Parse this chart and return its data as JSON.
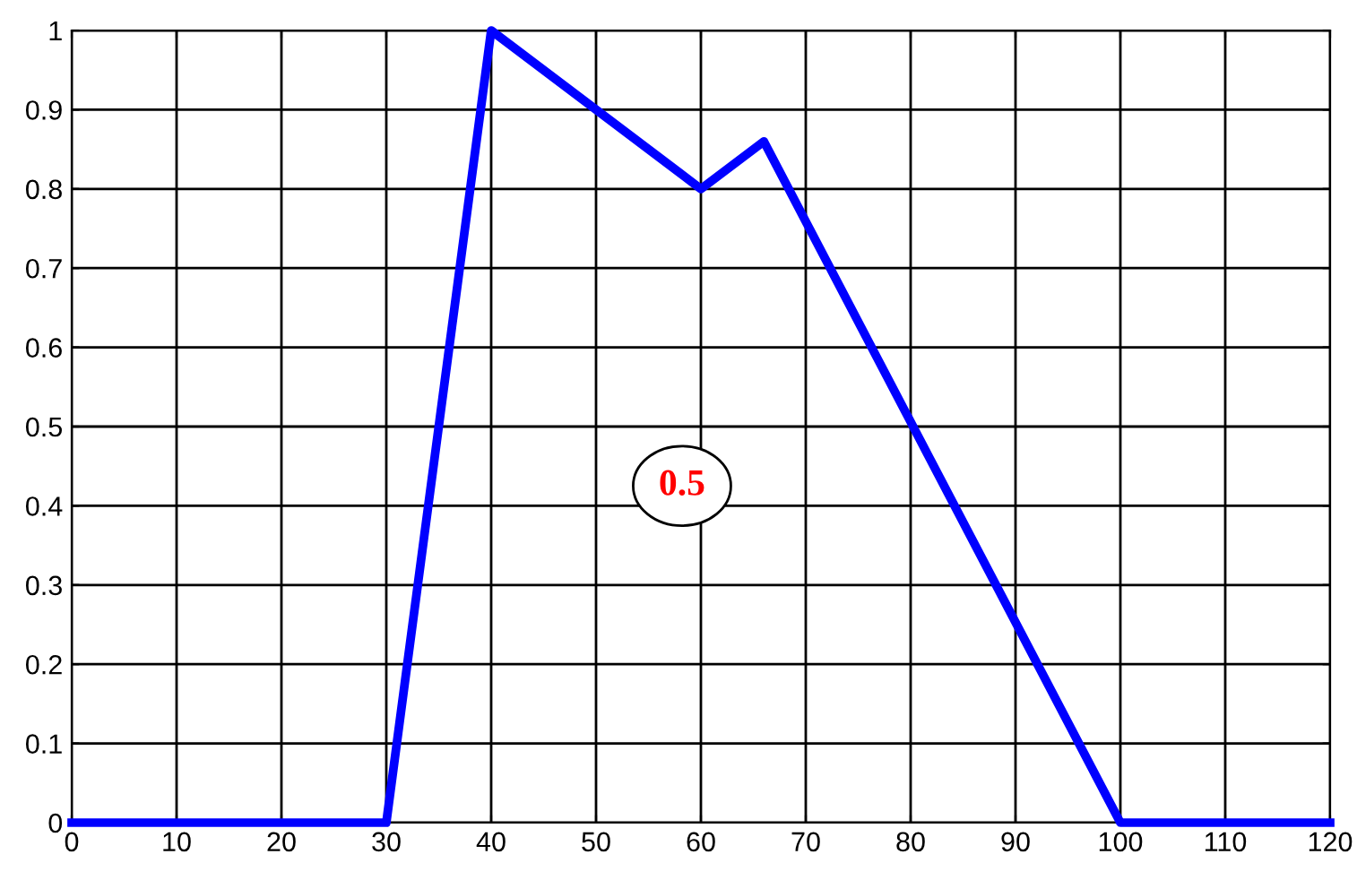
{
  "chart_data": {
    "type": "line",
    "x": [
      0,
      30,
      40,
      60,
      66,
      100,
      120
    ],
    "series": [
      {
        "color": "#0000ff",
        "values": [
          0,
          0,
          1,
          0.8,
          0.86,
          0,
          0
        ]
      }
    ],
    "xlim": [
      0,
      120
    ],
    "xticks": [
      0,
      10,
      20,
      30,
      40,
      50,
      60,
      70,
      80,
      90,
      100,
      110,
      120
    ],
    "ylim": [
      0,
      1
    ],
    "yticks": [
      0,
      0.1,
      0.2,
      0.3,
      0.4,
      0.5,
      0.6,
      0.7,
      0.8,
      0.9,
      1
    ],
    "grid": true,
    "marker": "none",
    "line_style": "solid",
    "annotations": [
      "0.5"
    ]
  }
}
